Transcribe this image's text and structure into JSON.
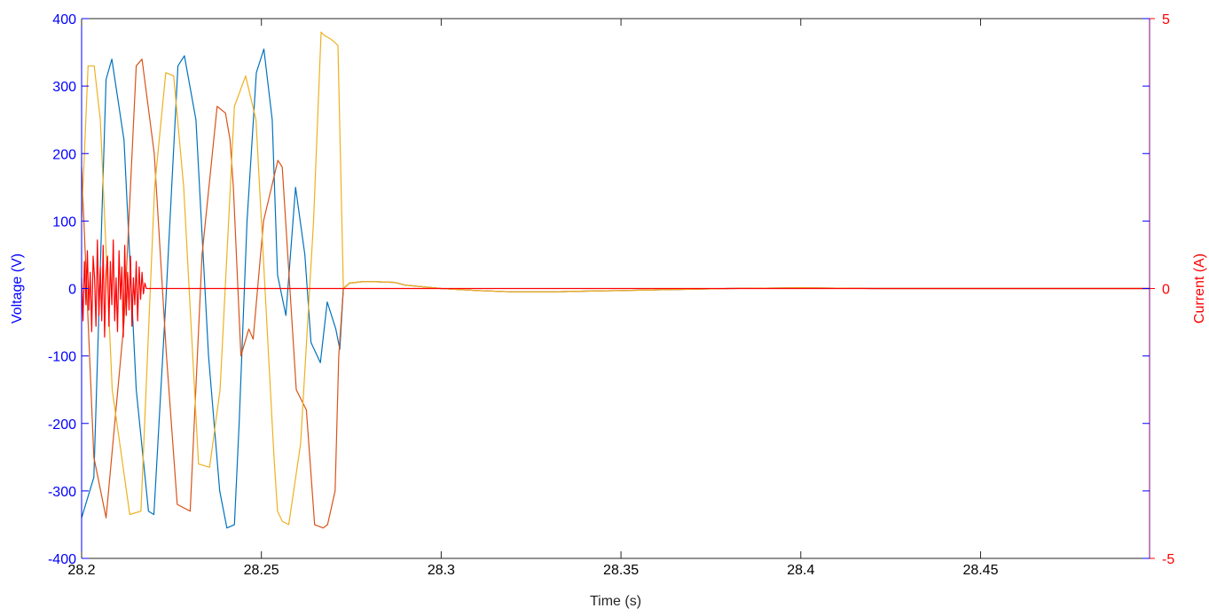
{
  "chart_data": {
    "type": "line",
    "xlabel": "Time (s)",
    "ylabel_left": "Voltage (V)",
    "ylabel_right": "Current (A)",
    "xlim": [
      28.2,
      28.497
    ],
    "ylim_left": [
      -400,
      400
    ],
    "ylim_right": [
      -5,
      5
    ],
    "x_ticks": [
      28.2,
      28.25,
      28.3,
      28.35,
      28.4,
      28.45
    ],
    "x_tick_labels": [
      "28.2",
      "28.25",
      "28.3",
      "28.35",
      "28.4",
      "28.45"
    ],
    "y_left_ticks": [
      -400,
      -300,
      -200,
      -100,
      0,
      100,
      200,
      300,
      400
    ],
    "y_left_tick_labels": [
      "-400",
      "-300",
      "-200",
      "-100",
      "0",
      "100",
      "200",
      "300",
      "400"
    ],
    "y_right_ticks": [
      -5,
      0,
      5
    ],
    "y_right_tick_labels": [
      "-5",
      "0",
      "5"
    ],
    "grid": false,
    "colors": {
      "left_axis": "#0000ff",
      "right_axis": "#ff0000",
      "voltage_a": "#0072bd",
      "voltage_b": "#d95319",
      "voltage_c": "#edb120",
      "current": "#ff0000"
    },
    "series": [
      {
        "axis": "left",
        "color": "#0072bd",
        "x": [
          28.2,
          28.2034,
          28.2068,
          28.2084,
          28.2118,
          28.2152,
          28.2186,
          28.2201,
          28.2234,
          28.2268,
          28.2286,
          28.2318,
          28.2353,
          28.2384,
          28.2404,
          28.2425,
          28.2438,
          28.246,
          28.2486,
          28.2507,
          28.253,
          28.2545,
          28.2568,
          28.2595,
          28.2621,
          28.2638,
          28.2664,
          28.2683,
          28.2707,
          28.2718,
          28.2728,
          28.2745,
          28.278,
          28.282,
          28.287,
          28.29,
          28.3,
          28.31,
          28.32,
          28.33,
          28.34,
          28.35,
          28.36,
          28.38,
          28.4,
          28.42,
          28.44,
          28.46,
          28.48,
          28.497
        ],
        "y": [
          -340,
          -280,
          310,
          340,
          220,
          -150,
          -330,
          -335,
          -20,
          330,
          345,
          250,
          -100,
          -300,
          -355,
          -350,
          -200,
          100,
          320,
          355,
          250,
          20,
          -40,
          150,
          50,
          -80,
          -110,
          -20,
          -60,
          -90,
          0,
          8,
          10,
          10,
          9,
          5,
          0,
          -3,
          -5,
          -5,
          -4,
          -3,
          -2,
          0,
          1,
          0,
          0,
          0,
          0,
          0
        ]
      },
      {
        "axis": "left",
        "color": "#d95319",
        "x": [
          28.2,
          28.2034,
          28.2068,
          28.2118,
          28.2152,
          28.2168,
          28.2202,
          28.2236,
          28.2266,
          28.2302,
          28.2335,
          28.2377,
          28.24,
          28.2413,
          28.2422,
          28.2443,
          28.2465,
          28.2477,
          28.2506,
          28.2546,
          28.2558,
          28.2597,
          28.2625,
          28.2648,
          28.2672,
          28.2684,
          28.2705,
          28.2715,
          28.2728,
          28.2745,
          28.278,
          28.282,
          28.287,
          28.29,
          28.3,
          28.31,
          28.32,
          28.33,
          28.34,
          28.35,
          28.36,
          28.38,
          28.4,
          28.42,
          28.44,
          28.46,
          28.48,
          28.497
        ],
        "y": [
          180,
          -250,
          -340,
          -50,
          330,
          340,
          200,
          -100,
          -320,
          -330,
          50,
          270,
          260,
          220,
          150,
          -100,
          -60,
          -75,
          100,
          190,
          180,
          -150,
          -180,
          -350,
          -355,
          -350,
          -300,
          -100,
          0,
          8,
          10,
          10,
          9,
          5,
          0,
          -3,
          -5,
          -5,
          -4,
          -3,
          -2,
          0,
          1,
          0,
          0,
          0,
          0,
          0
        ]
      },
      {
        "axis": "left",
        "color": "#edb120",
        "x": [
          28.2,
          28.2018,
          28.2035,
          28.2052,
          28.2085,
          28.2134,
          28.2165,
          28.2203,
          28.2234,
          28.2256,
          28.2284,
          28.2325,
          28.2356,
          28.2385,
          28.2425,
          28.2456,
          28.2485,
          28.2535,
          28.2545,
          28.2558,
          28.2576,
          28.2609,
          28.2645,
          28.2666,
          28.2675,
          28.2692,
          28.2704,
          28.2713,
          28.2728,
          28.2745,
          28.278,
          28.282,
          28.287,
          28.29,
          28.3,
          28.31,
          28.32,
          28.33,
          28.34,
          28.35,
          28.36,
          28.38,
          28.4,
          28.42,
          28.44,
          28.46,
          28.48,
          28.497
        ],
        "y": [
          100,
          330,
          330,
          250,
          -150,
          -335,
          -330,
          150,
          320,
          315,
          150,
          -260,
          -265,
          -150,
          270,
          315,
          250,
          -250,
          -330,
          -345,
          -350,
          -230,
          100,
          380,
          375,
          370,
          365,
          360,
          0,
          8,
          10,
          10,
          9,
          5,
          0,
          -3,
          -5,
          -5,
          -4,
          -3,
          -2,
          0,
          1,
          0,
          0,
          0,
          0,
          0
        ]
      },
      {
        "axis": "right",
        "color": "#ff0000",
        "x": [
          28.2,
          28.2004,
          28.2008,
          28.2012,
          28.2016,
          28.202,
          28.2024,
          28.2028,
          28.2032,
          28.2036,
          28.204,
          28.2044,
          28.2048,
          28.2052,
          28.2056,
          28.206,
          28.2064,
          28.2068,
          28.2072,
          28.2076,
          28.208,
          28.2084,
          28.2088,
          28.2092,
          28.2096,
          28.21,
          28.2104,
          28.2108,
          28.2112,
          28.2116,
          28.212,
          28.2124,
          28.2128,
          28.2132,
          28.2136,
          28.214,
          28.2144,
          28.2148,
          28.2152,
          28.2156,
          28.216,
          28.2164,
          28.2168,
          28.2172,
          28.2176,
          28.218,
          28.25,
          28.3,
          28.35,
          28.4,
          28.45,
          28.497
        ],
        "y": [
          0.2,
          -0.6,
          0.5,
          -0.3,
          0.7,
          -0.4,
          0.3,
          -0.8,
          0.6,
          0.2,
          -0.7,
          0.9,
          -0.5,
          0.4,
          -0.6,
          0.8,
          -0.9,
          0.3,
          0.6,
          -0.7,
          0.5,
          -0.3,
          0.9,
          -0.6,
          0.2,
          -0.8,
          0.7,
          -0.2,
          0.4,
          -0.9,
          0.8,
          -0.5,
          0.3,
          -0.4,
          0.6,
          -0.7,
          0.2,
          -0.3,
          0.5,
          -0.6,
          0.4,
          -0.2,
          0.3,
          -0.1,
          0.1,
          0,
          0,
          0,
          0,
          0,
          0,
          0
        ]
      }
    ]
  }
}
